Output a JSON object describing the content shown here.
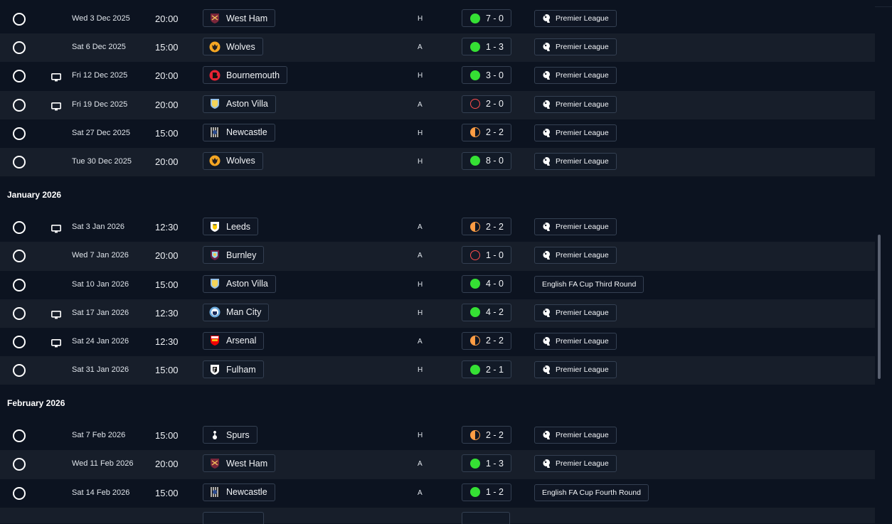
{
  "colors": {
    "background": "#0c1320",
    "row_alt": "#171e2a",
    "win": "#35e034",
    "loss": "#ff4d4d",
    "draw": "#ff9d44",
    "chip_border": "#344052"
  },
  "sections": [
    {
      "month": "",
      "rows": [
        {
          "tv": false,
          "date": "Wed 3 Dec 2025",
          "time": "20:00",
          "team": "West Ham",
          "crest": "west-ham-crest-icon",
          "venue": "H",
          "result": "win",
          "score": "7 - 0",
          "competition": "Premier League",
          "pl": true
        },
        {
          "tv": false,
          "date": "Sat 6 Dec 2025",
          "time": "15:00",
          "team": "Wolves",
          "crest": "wolves-crest-icon",
          "venue": "A",
          "result": "win",
          "score": "1 - 3",
          "competition": "Premier League",
          "pl": true
        },
        {
          "tv": true,
          "date": "Fri 12 Dec 2025",
          "time": "20:00",
          "team": "Bournemouth",
          "crest": "bournemouth-crest-icon",
          "venue": "H",
          "result": "win",
          "score": "3 - 0",
          "competition": "Premier League",
          "pl": true
        },
        {
          "tv": true,
          "date": "Fri 19 Dec 2025",
          "time": "20:00",
          "team": "Aston Villa",
          "crest": "aston-villa-crest-icon",
          "venue": "A",
          "result": "loss",
          "score": "2 - 0",
          "competition": "Premier League",
          "pl": true
        },
        {
          "tv": false,
          "date": "Sat 27 Dec 2025",
          "time": "15:00",
          "team": "Newcastle",
          "crest": "newcastle-crest-icon",
          "venue": "H",
          "result": "draw",
          "score": "2 - 2",
          "competition": "Premier League",
          "pl": true
        },
        {
          "tv": false,
          "date": "Tue 30 Dec 2025",
          "time": "20:00",
          "team": "Wolves",
          "crest": "wolves-crest-icon",
          "venue": "H",
          "result": "win",
          "score": "8 - 0",
          "competition": "Premier League",
          "pl": true
        }
      ]
    },
    {
      "month": "January 2026",
      "rows": [
        {
          "tv": true,
          "date": "Sat 3 Jan 2026",
          "time": "12:30",
          "team": "Leeds",
          "crest": "leeds-crest-icon",
          "venue": "A",
          "result": "draw",
          "score": "2 - 2",
          "competition": "Premier League",
          "pl": true
        },
        {
          "tv": false,
          "date": "Wed 7 Jan 2026",
          "time": "20:00",
          "team": "Burnley",
          "crest": "burnley-crest-icon",
          "venue": "A",
          "result": "loss",
          "score": "1 - 0",
          "competition": "Premier League",
          "pl": true
        },
        {
          "tv": false,
          "date": "Sat 10 Jan 2026",
          "time": "15:00",
          "team": "Aston Villa",
          "crest": "aston-villa-crest-icon",
          "venue": "H",
          "result": "win",
          "score": "4 - 0",
          "competition": "English FA Cup Third Round",
          "pl": false
        },
        {
          "tv": true,
          "date": "Sat 17 Jan 2026",
          "time": "12:30",
          "team": "Man City",
          "crest": "man-city-crest-icon",
          "venue": "H",
          "result": "win",
          "score": "4 - 2",
          "competition": "Premier League",
          "pl": true
        },
        {
          "tv": true,
          "date": "Sat 24 Jan 2026",
          "time": "12:30",
          "team": "Arsenal",
          "crest": "arsenal-crest-icon",
          "venue": "A",
          "result": "draw",
          "score": "2 - 2",
          "competition": "Premier League",
          "pl": true
        },
        {
          "tv": false,
          "date": "Sat 31 Jan 2026",
          "time": "15:00",
          "team": "Fulham",
          "crest": "fulham-crest-icon",
          "venue": "H",
          "result": "win",
          "score": "2 - 1",
          "competition": "Premier League",
          "pl": true
        }
      ]
    },
    {
      "month": "February 2026",
      "rows": [
        {
          "tv": false,
          "date": "Sat 7 Feb 2026",
          "time": "15:00",
          "team": "Spurs",
          "crest": "spurs-crest-icon",
          "venue": "H",
          "result": "draw",
          "score": "2 - 2",
          "competition": "Premier League",
          "pl": true
        },
        {
          "tv": false,
          "date": "Wed 11 Feb 2026",
          "time": "20:00",
          "team": "West Ham",
          "crest": "west-ham-crest-icon",
          "venue": "A",
          "result": "win",
          "score": "1 - 3",
          "competition": "Premier League",
          "pl": true
        },
        {
          "tv": false,
          "date": "Sat 14 Feb 2026",
          "time": "15:00",
          "team": "Newcastle",
          "crest": "newcastle-crest-icon",
          "venue": "A",
          "result": "win",
          "score": "1 - 2",
          "competition": "English FA Cup Fourth Round",
          "pl": false
        },
        {
          "tv": false,
          "date": "",
          "time": "",
          "team": "",
          "crest": "",
          "venue": "",
          "result": "",
          "score": "",
          "competition": "",
          "pl": false,
          "partial": true
        }
      ]
    }
  ]
}
